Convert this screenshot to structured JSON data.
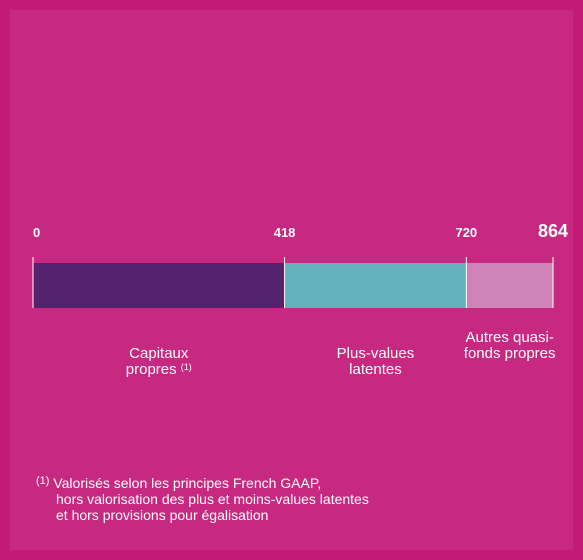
{
  "chart_data": {
    "type": "stacked-hbar",
    "categories": [
      "Capitaux propres",
      "Plus-values latentes",
      "Autres quasi-fonds propres"
    ],
    "category_note": "(1)",
    "values": [
      418,
      302,
      144
    ],
    "colors": [
      "#55236d",
      "#62b2bd",
      "#d083b8"
    ],
    "xlim": [
      0,
      864
    ],
    "xticks": [
      0,
      418,
      720,
      864
    ]
  },
  "footnote": {
    "marker": "(1)",
    "lines": [
      "Valorisés selon les principes French GAAP,",
      "hors valorisation des plus et moins-values latentes",
      "et hors provisions pour égalisation"
    ]
  }
}
